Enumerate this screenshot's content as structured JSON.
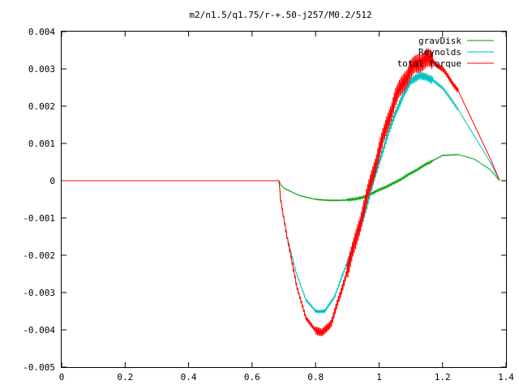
{
  "chart_data": {
    "type": "line",
    "title": "m2/n1.5/q1.75/r-+.50-j257/M0.2/512",
    "xlabel": "",
    "ylabel": "",
    "xlim": [
      0,
      1.4
    ],
    "ylim": [
      -0.005,
      0.004
    ],
    "grid": false,
    "legend_position": "top-right",
    "x_ticks": [
      "0",
      "0.2",
      "0.4",
      "0.6",
      "0.8",
      "1",
      "1.2",
      "1.4"
    ],
    "y_ticks": [
      "0.004",
      "0.003",
      "0.002",
      "0.001",
      "0",
      "-0.001",
      "-0.002",
      "-0.003",
      "-0.004",
      "-0.005"
    ],
    "series": [
      {
        "name": "gravDisk",
        "color": "#00a000",
        "noise": 3e-05,
        "x": [
          0,
          0.685,
          0.69,
          0.7,
          0.75,
          0.8,
          0.85,
          0.9,
          0.95,
          1.0,
          1.05,
          1.1,
          1.15,
          1.2,
          1.25,
          1.3,
          1.35,
          1.38
        ],
        "y": [
          0,
          0,
          -0.0001,
          -0.0002,
          -0.0004,
          -0.0005,
          -0.00053,
          -0.00052,
          -0.00045,
          -0.00025,
          -5e-05,
          0.0002,
          0.00045,
          0.00068,
          0.0007,
          0.00058,
          0.0003,
          0.0
        ]
      },
      {
        "name": "Reynolds",
        "color": "#00c0c0",
        "noise": 0.00012,
        "x": [
          0,
          0.685,
          0.69,
          0.71,
          0.74,
          0.77,
          0.8,
          0.83,
          0.86,
          0.9,
          0.95,
          1.0,
          1.05,
          1.1,
          1.13,
          1.15,
          1.2,
          1.25,
          1.3,
          1.35,
          1.38
        ],
        "y": [
          0,
          0,
          -0.0005,
          -0.0015,
          -0.0025,
          -0.0032,
          -0.0035,
          -0.0035,
          -0.0031,
          -0.0022,
          -0.001,
          0.0005,
          0.0018,
          0.0027,
          0.0028,
          0.0028,
          0.0025,
          0.0019,
          0.0012,
          0.0005,
          0.0
        ]
      },
      {
        "name": "total torque",
        "color": "#ff0000",
        "noise": 0.00028,
        "x": [
          0,
          0.685,
          0.69,
          0.71,
          0.74,
          0.77,
          0.8,
          0.82,
          0.85,
          0.88,
          0.92,
          0.96,
          1.0,
          1.05,
          1.1,
          1.15,
          1.2,
          1.25,
          1.3,
          1.35,
          1.38
        ],
        "y": [
          0,
          0,
          -0.0005,
          -0.0015,
          -0.0028,
          -0.0037,
          -0.004,
          -0.0041,
          -0.0038,
          -0.003,
          -0.0018,
          -0.0005,
          0.0008,
          0.0022,
          0.003,
          0.0033,
          0.003,
          0.0024,
          0.0015,
          0.0006,
          0.0
        ]
      }
    ]
  }
}
